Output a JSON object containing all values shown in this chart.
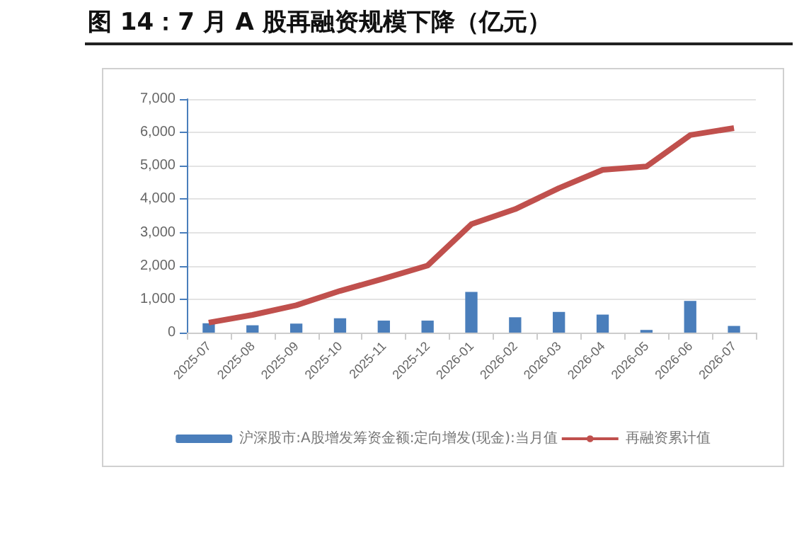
{
  "chart_data": {
    "type": "bar",
    "title": "图 14：7 月 A 股再融资规模下降（亿元）",
    "categories": [
      "2025-07",
      "2025-08",
      "2025-09",
      "2025-10",
      "2025-11",
      "2025-12",
      "2026-01",
      "2026-02",
      "2026-03",
      "2026-04",
      "2026-05",
      "2026-06",
      "2026-07"
    ],
    "series": [
      {
        "name": "沪深股市:A股增发筹资金额:定向增发(现金):当月值",
        "color": "#4a7ebb",
        "values": [
          280,
          220,
          270,
          430,
          360,
          360,
          1220,
          460,
          620,
          540,
          80,
          950,
          200
        ]
      },
      {
        "name": "再融资累计值",
        "type": "line",
        "color": "#c0504d",
        "values": [
          300,
          530,
          820,
          1250,
          1620,
          2010,
          3250,
          3700,
          4330,
          4880,
          4980,
          5920,
          6130
        ]
      }
    ],
    "ylim": [
      0,
      7000
    ],
    "yticks": [
      0,
      {
        "value": 1000,
        "label": "1,000"
      },
      {
        "value": 2000,
        "label": "2,000"
      },
      {
        "value": 3000,
        "label": "3,000"
      },
      {
        "value": 4000,
        "label": "4,000"
      },
      {
        "value": 5000,
        "label": "5,000"
      },
      {
        "value": 6000,
        "label": "6,000"
      },
      {
        "value": 7000,
        "label": "7,000"
      }
    ],
    "grid": "y",
    "legend": "bottom",
    "marker": "none"
  }
}
